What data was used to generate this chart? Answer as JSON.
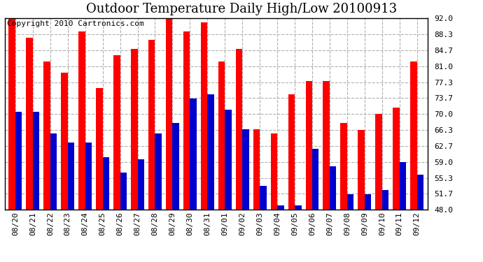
{
  "title": "Outdoor Temperature Daily High/Low 20100913",
  "copyright": "Copyright 2010 Cartronics.com",
  "dates": [
    "08/20",
    "08/21",
    "08/22",
    "08/23",
    "08/24",
    "08/25",
    "08/26",
    "08/27",
    "08/28",
    "08/29",
    "08/30",
    "08/31",
    "09/01",
    "09/02",
    "09/03",
    "09/04",
    "09/05",
    "09/06",
    "09/07",
    "09/08",
    "09/09",
    "09/10",
    "09/11",
    "09/12"
  ],
  "highs": [
    92.0,
    87.5,
    82.0,
    79.5,
    89.0,
    76.0,
    83.5,
    85.0,
    87.0,
    92.0,
    89.0,
    91.0,
    82.0,
    85.0,
    66.5,
    65.5,
    74.5,
    77.5,
    77.5,
    68.0,
    66.3,
    70.0,
    71.5,
    82.0
  ],
  "lows": [
    70.5,
    70.5,
    65.5,
    63.5,
    63.5,
    60.0,
    56.5,
    59.5,
    65.5,
    68.0,
    73.5,
    74.5,
    71.0,
    66.5,
    53.5,
    49.0,
    49.0,
    62.0,
    58.0,
    51.5,
    51.5,
    52.5,
    59.0,
    56.0
  ],
  "high_color": "#ff0000",
  "low_color": "#0000cc",
  "bg_color": "#ffffff",
  "plot_bg_color": "#ffffff",
  "grid_color": "#b0b0b0",
  "yticks": [
    48.0,
    51.7,
    55.3,
    59.0,
    62.7,
    66.3,
    70.0,
    73.7,
    77.3,
    81.0,
    84.7,
    88.3,
    92.0
  ],
  "ylim": [
    48.0,
    92.0
  ],
  "ybase": 48.0,
  "title_fontsize": 13,
  "copyright_fontsize": 8,
  "tick_fontsize": 8,
  "bar_width": 0.38
}
